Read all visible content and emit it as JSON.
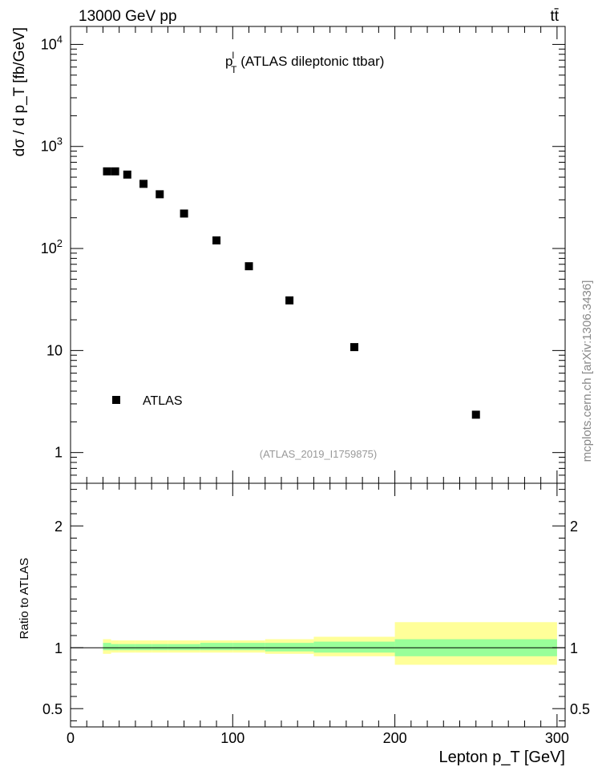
{
  "header": {
    "left": "13000 GeV pp",
    "right": "tt̄"
  },
  "title": {
    "main": "p",
    "sup": "l",
    "sub": "T",
    "rest": " (ATLAS dileptonic ttbar)"
  },
  "tag": "(ATLAS_2019_I1759875)",
  "watermark": "mcplots.cern.ch [arXiv:1306.3436]",
  "colors": {
    "data_marker": "#000000",
    "band_outer": "#ffff99",
    "band_inner": "#99ff99",
    "tag_text": "#999999",
    "watermark_text": "#888888"
  },
  "chart_data": [
    {
      "type": "scatter",
      "title": "p_T^l (ATLAS dileptonic ttbar)",
      "xlabel": "Lepton p_T [GeV]",
      "ylabel": "dσ / d p_T [fb/GeV]",
      "xlim": [
        0,
        305
      ],
      "ylim": [
        0.5,
        15000
      ],
      "log_y": true,
      "legend": {
        "placement": "bottom-left",
        "entries": [
          "ATLAS"
        ]
      },
      "y_tick_labels": [
        "1",
        "10",
        "10^2",
        "10^3",
        "10^4"
      ],
      "series": [
        {
          "name": "ATLAS",
          "x": [
            22.5,
            27.5,
            35,
            45,
            55,
            70,
            90,
            110,
            135,
            175,
            250
          ],
          "y": [
            570,
            570,
            530,
            430,
            340,
            220,
            120,
            67,
            31,
            10.8,
            2.35
          ]
        }
      ]
    },
    {
      "type": "area",
      "ylabel": "Ratio to ATLAS",
      "xlabel": "Lepton p_T [GeV]",
      "xlim": [
        0,
        305
      ],
      "ylim": [
        0.35,
        2.35
      ],
      "x_tick_labels": [
        "0",
        "100",
        "200",
        "300"
      ],
      "y_tick_labels": [
        "0.5",
        "1",
        "2"
      ],
      "reference_line": 1,
      "bins": [
        {
          "lo": 20,
          "hi": 25,
          "stat_lo": 0.98,
          "stat_hi": 1.04,
          "tot_lo": 0.95,
          "tot_hi": 1.07
        },
        {
          "lo": 25,
          "hi": 30,
          "stat_lo": 0.98,
          "stat_hi": 1.03,
          "tot_lo": 0.96,
          "tot_hi": 1.06
        },
        {
          "lo": 30,
          "hi": 40,
          "stat_lo": 0.98,
          "stat_hi": 1.03,
          "tot_lo": 0.96,
          "tot_hi": 1.06
        },
        {
          "lo": 40,
          "hi": 50,
          "stat_lo": 0.98,
          "stat_hi": 1.03,
          "tot_lo": 0.96,
          "tot_hi": 1.06
        },
        {
          "lo": 50,
          "hi": 60,
          "stat_lo": 0.98,
          "stat_hi": 1.03,
          "tot_lo": 0.96,
          "tot_hi": 1.06
        },
        {
          "lo": 60,
          "hi": 80,
          "stat_lo": 0.98,
          "stat_hi": 1.03,
          "tot_lo": 0.96,
          "tot_hi": 1.06
        },
        {
          "lo": 80,
          "hi": 100,
          "stat_lo": 0.98,
          "stat_hi": 1.04,
          "tot_lo": 0.96,
          "tot_hi": 1.06
        },
        {
          "lo": 100,
          "hi": 120,
          "stat_lo": 0.98,
          "stat_hi": 1.04,
          "tot_lo": 0.96,
          "tot_hi": 1.06
        },
        {
          "lo": 120,
          "hi": 150,
          "stat_lo": 0.97,
          "stat_hi": 1.04,
          "tot_lo": 0.95,
          "tot_hi": 1.07
        },
        {
          "lo": 150,
          "hi": 200,
          "stat_lo": 0.96,
          "stat_hi": 1.05,
          "tot_lo": 0.93,
          "tot_hi": 1.09
        },
        {
          "lo": 200,
          "hi": 300,
          "stat_lo": 0.93,
          "stat_hi": 1.07,
          "tot_lo": 0.86,
          "tot_hi": 1.21
        }
      ]
    }
  ]
}
